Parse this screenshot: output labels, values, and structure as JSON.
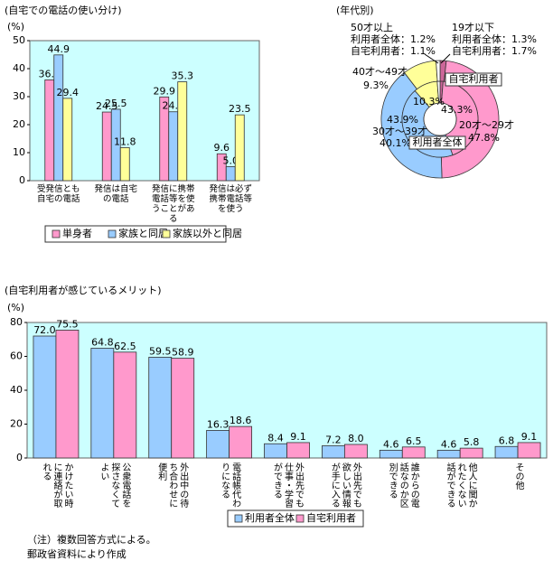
{
  "chart_data": [
    {
      "type": "bar",
      "title": "(自宅での電話の使い分け)",
      "ylabel": "(%)",
      "categories": [
        "受発信とも自宅の電話",
        "発信は自宅の電話",
        "発信に携帯電話等を使うことがある",
        "発信は必ず携帯電話等を使う"
      ],
      "series": [
        {
          "name": "単身者",
          "color": "#ff99cc",
          "values": [
            36.0,
            24.5,
            29.9,
            9.6
          ],
          "value_labels": [
            "36.0",
            "24.5",
            "29.9",
            "9.6"
          ]
        },
        {
          "name": "家族と同居",
          "color": "#99ccff",
          "values": [
            44.9,
            25.5,
            24.6,
            5.0
          ],
          "value_labels": [
            "44.9",
            "25.5",
            "24.6",
            "5.0"
          ]
        },
        {
          "name": "家族以外と同居",
          "color": "#ffff99",
          "values": [
            29.4,
            11.8,
            35.3,
            23.5
          ],
          "value_labels": [
            "29.4",
            "11.8",
            "35.3",
            "23.5"
          ]
        }
      ],
      "ylim": [
        0,
        50
      ],
      "yticks": [
        0,
        10,
        20,
        30,
        40,
        50
      ],
      "background": "#ccffff"
    },
    {
      "type": "pie",
      "title": "(年代別)",
      "categories": [
        "19才以下",
        "20才〜29才",
        "30才〜39才",
        "40才〜49才",
        "50才以上"
      ],
      "colors": [
        "#cc6699",
        "#ff99cc",
        "#99ccff",
        "#ffff99",
        "#ffffff"
      ],
      "series": [
        {
          "name": "自宅利用者",
          "values": [
            1.7,
            47.8,
            40.1,
            9.3,
            1.1
          ],
          "value_labels": [
            "自宅利用者：1.7%",
            "47.8%",
            "40.1%",
            "9.3%",
            "自宅利用者：1.1%"
          ]
        },
        {
          "name": "利用者全体",
          "values": [
            1.3,
            43.3,
            43.9,
            10.3,
            1.2
          ],
          "value_labels": [
            "利用者全体：1.3%",
            "43.3%",
            "43.9%",
            "10.3%",
            "利用者全体：1.2%"
          ]
        }
      ]
    },
    {
      "type": "bar",
      "title": "(自宅利用者が感じているメリット)",
      "ylabel": "(%)",
      "categories": [
        "かけたい時に連絡が取れる",
        "公衆電話を探さなくてよい",
        "外出中の待ち合わせに便利",
        "電話帳代わりになる",
        "外出先でも仕事・学習ができる",
        "外出先でも欲しい情報が手に入る",
        "誰からの電話なのか区別できる",
        "他人に聞かれたくない話ができる",
        "その他"
      ],
      "series": [
        {
          "name": "利用者全体",
          "color": "#99ccff",
          "values": [
            72.0,
            64.8,
            59.5,
            16.3,
            8.4,
            7.2,
            4.6,
            4.6,
            6.8
          ],
          "value_labels": [
            "72.0",
            "64.8",
            "59.5",
            "16.3",
            "8.4",
            "7.2",
            "4.6",
            "4.6",
            "6.8"
          ]
        },
        {
          "name": "自宅利用者",
          "color": "#ff99cc",
          "values": [
            75.5,
            62.5,
            58.9,
            18.6,
            9.1,
            8.0,
            6.5,
            5.8,
            9.1
          ],
          "value_labels": [
            "75.5",
            "62.5",
            "58.9",
            "18.6",
            "9.1",
            "8.0",
            "6.5",
            "5.8",
            "9.1"
          ]
        }
      ],
      "ylim": [
        0,
        80
      ],
      "yticks": [
        0,
        20,
        40,
        60,
        80
      ],
      "background": "#ccffff",
      "note": "（注）複数回答方式による。",
      "source": "郵政省資料により作成"
    }
  ]
}
